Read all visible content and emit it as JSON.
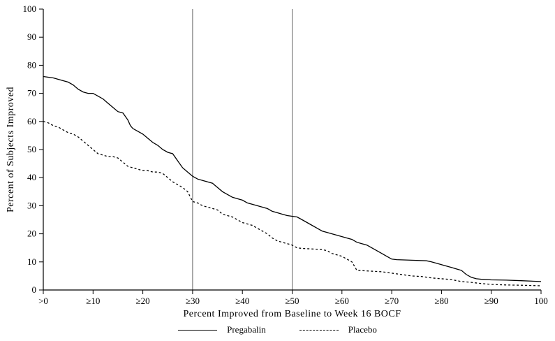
{
  "chart_data": {
    "type": "line",
    "title": "",
    "xlabel": "Percent Improved from Baseline to Week 16 BOCF",
    "ylabel": "Percent of Subjects Improved",
    "xlim": [
      0,
      100
    ],
    "ylim": [
      0,
      100
    ],
    "grid": false,
    "legend_position": "bottom",
    "x_tick_labels": [
      ">0",
      "≥10",
      "≥20",
      "≥30",
      "≥40",
      "≥50",
      "≥60",
      "≥70",
      "≥80",
      "≥90",
      "100"
    ],
    "x_tick_values": [
      0,
      10,
      20,
      30,
      40,
      50,
      60,
      70,
      80,
      90,
      100
    ],
    "y_tick_values": [
      0,
      10,
      20,
      30,
      40,
      50,
      60,
      70,
      80,
      90,
      100
    ],
    "reference_lines_x": [
      30,
      50
    ],
    "axis_color": "#000000",
    "reference_line_color": "#555555",
    "series": [
      {
        "name": "Pregabalin",
        "style": "solid",
        "color": "#000000",
        "points": [
          [
            0,
            76
          ],
          [
            2,
            75.5
          ],
          [
            3,
            75
          ],
          [
            4,
            74.5
          ],
          [
            5,
            74
          ],
          [
            6,
            73
          ],
          [
            7,
            71.5
          ],
          [
            8,
            70.5
          ],
          [
            9,
            70
          ],
          [
            10,
            70
          ],
          [
            11,
            69
          ],
          [
            12,
            68
          ],
          [
            13,
            66.5
          ],
          [
            14,
            65
          ],
          [
            15,
            63.5
          ],
          [
            16,
            63
          ],
          [
            17,
            60.5
          ],
          [
            17.5,
            58.5
          ],
          [
            18,
            57.5
          ],
          [
            19,
            56.5
          ],
          [
            20,
            55.5
          ],
          [
            21,
            54
          ],
          [
            22,
            52.5
          ],
          [
            23,
            51.5
          ],
          [
            24,
            50
          ],
          [
            25,
            49
          ],
          [
            26,
            48.5
          ],
          [
            27,
            46
          ],
          [
            28,
            43.5
          ],
          [
            29,
            42
          ],
          [
            30,
            40.5
          ],
          [
            31,
            39.5
          ],
          [
            32,
            39
          ],
          [
            33,
            38.5
          ],
          [
            34,
            38
          ],
          [
            35,
            36.5
          ],
          [
            36,
            35
          ],
          [
            37,
            34
          ],
          [
            38,
            33
          ],
          [
            39,
            32.5
          ],
          [
            40,
            32
          ],
          [
            41,
            31
          ],
          [
            42,
            30.5
          ],
          [
            43,
            30
          ],
          [
            44,
            29.5
          ],
          [
            45,
            29
          ],
          [
            46,
            28
          ],
          [
            47,
            27.5
          ],
          [
            48,
            27
          ],
          [
            49,
            26.5
          ],
          [
            51,
            26
          ],
          [
            52,
            25
          ],
          [
            53,
            24
          ],
          [
            54,
            23
          ],
          [
            55,
            22
          ],
          [
            56,
            21
          ],
          [
            57,
            20.5
          ],
          [
            58,
            20
          ],
          [
            59,
            19.5
          ],
          [
            60,
            19
          ],
          [
            61,
            18.5
          ],
          [
            62,
            18
          ],
          [
            63,
            17
          ],
          [
            64,
            16.5
          ],
          [
            65,
            16
          ],
          [
            66,
            15
          ],
          [
            67,
            14
          ],
          [
            68,
            13
          ],
          [
            69,
            12
          ],
          [
            70,
            11
          ],
          [
            71,
            10.8
          ],
          [
            74,
            10.6
          ],
          [
            77,
            10.4
          ],
          [
            78,
            10
          ],
          [
            79,
            9.5
          ],
          [
            80,
            9
          ],
          [
            81,
            8.5
          ],
          [
            82,
            8
          ],
          [
            83,
            7.5
          ],
          [
            84,
            7
          ],
          [
            85,
            5.5
          ],
          [
            86,
            4.5
          ],
          [
            87,
            4
          ],
          [
            88,
            3.8
          ],
          [
            90,
            3.6
          ],
          [
            93,
            3.5
          ],
          [
            96,
            3.3
          ],
          [
            100,
            3
          ]
        ]
      },
      {
        "name": "Placebo",
        "style": "dashed",
        "color": "#000000",
        "points": [
          [
            0,
            60
          ],
          [
            1,
            59.5
          ],
          [
            2,
            58.5
          ],
          [
            3,
            58
          ],
          [
            4,
            57
          ],
          [
            5,
            56
          ],
          [
            6,
            55.5
          ],
          [
            7,
            54.5
          ],
          [
            8,
            53
          ],
          [
            9,
            51.5
          ],
          [
            10,
            50
          ],
          [
            11,
            48.5
          ],
          [
            12,
            48
          ],
          [
            13,
            47.5
          ],
          [
            14,
            47.5
          ],
          [
            15,
            47
          ],
          [
            16,
            45.5
          ],
          [
            17,
            44
          ],
          [
            18,
            43.5
          ],
          [
            19,
            43
          ],
          [
            20,
            42.5
          ],
          [
            21,
            42.5
          ],
          [
            22,
            42
          ],
          [
            23,
            42
          ],
          [
            24,
            41.5
          ],
          [
            25,
            40
          ],
          [
            26,
            38.5
          ],
          [
            27,
            37.5
          ],
          [
            28,
            36.5
          ],
          [
            29,
            35
          ],
          [
            30,
            31.5
          ],
          [
            31,
            31
          ],
          [
            32,
            30
          ],
          [
            33,
            29.5
          ],
          [
            34,
            29
          ],
          [
            35,
            28.5
          ],
          [
            36,
            27
          ],
          [
            37,
            26.5
          ],
          [
            38,
            26
          ],
          [
            39,
            25
          ],
          [
            40,
            24
          ],
          [
            41,
            23.5
          ],
          [
            42,
            23
          ],
          [
            43,
            22
          ],
          [
            44,
            21
          ],
          [
            45,
            20
          ],
          [
            46,
            18.5
          ],
          [
            47,
            17.5
          ],
          [
            48,
            17
          ],
          [
            49,
            16.5
          ],
          [
            50,
            16
          ],
          [
            51,
            15
          ],
          [
            52,
            14.8
          ],
          [
            54,
            14.6
          ],
          [
            56,
            14.4
          ],
          [
            57,
            14
          ],
          [
            58,
            13
          ],
          [
            59,
            12.5
          ],
          [
            60,
            12
          ],
          [
            61,
            11
          ],
          [
            62,
            10
          ],
          [
            63,
            7
          ],
          [
            65,
            6.8
          ],
          [
            68,
            6.5
          ],
          [
            70,
            6
          ],
          [
            72,
            5.5
          ],
          [
            74,
            5
          ],
          [
            76,
            4.8
          ],
          [
            78,
            4.3
          ],
          [
            80,
            4
          ],
          [
            82,
            3.7
          ],
          [
            84,
            3
          ],
          [
            86,
            2.7
          ],
          [
            88,
            2.3
          ],
          [
            90,
            2
          ],
          [
            93,
            1.8
          ],
          [
            96,
            1.7
          ],
          [
            100,
            1.5
          ]
        ]
      }
    ]
  }
}
